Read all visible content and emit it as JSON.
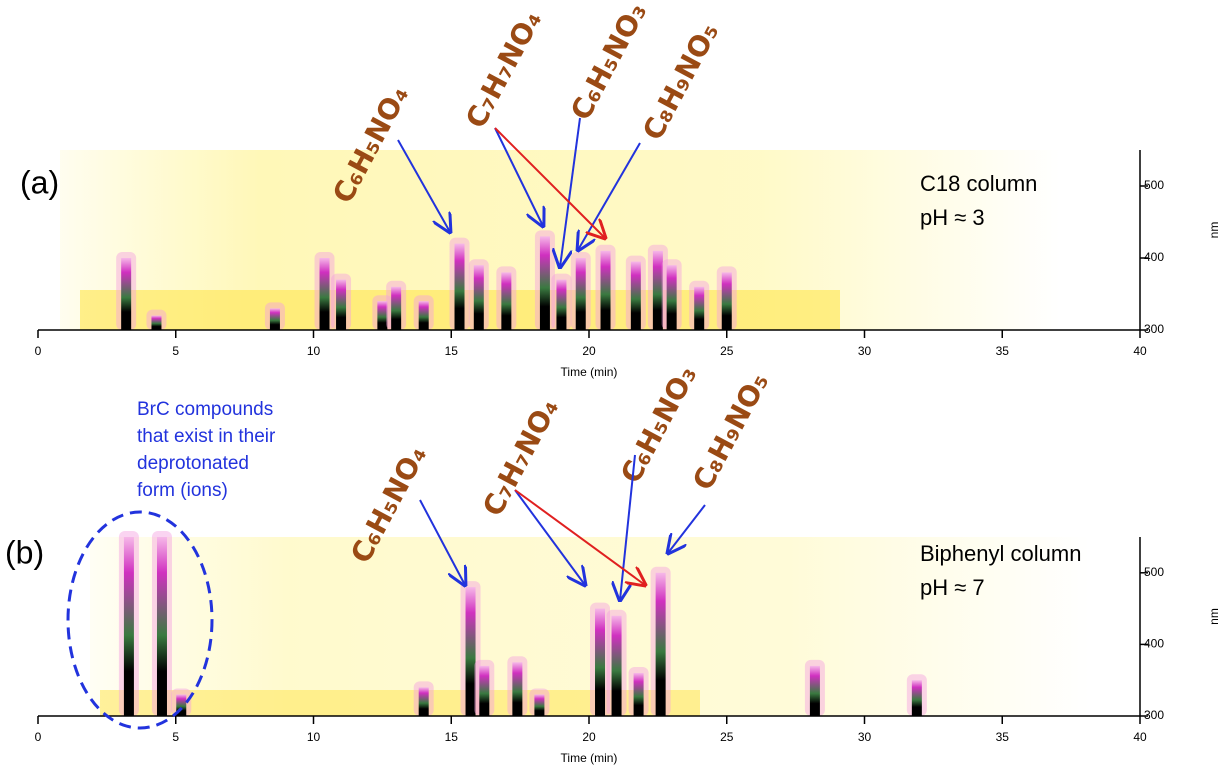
{
  "chart_data": [
    {
      "type": "heatmap",
      "panel_label": "(a)",
      "annotation": [
        "C18 column",
        "pH ≈ 3"
      ],
      "xlabel": "Time (min)",
      "ylabel": "nm",
      "xlim": [
        0,
        40
      ],
      "xticks": [
        0,
        5,
        10,
        15,
        20,
        25,
        30,
        35,
        40
      ],
      "ylim": [
        300,
        550
      ],
      "yticks": [
        300,
        400,
        500
      ],
      "formulas": [
        "C₆H₅NO₄",
        "C₇H₇NO₄",
        "C₆H₅NO₃",
        "C₈H₉NO₅"
      ],
      "peaks": {
        "x": [
          3.2,
          4.3,
          8.6,
          10.4,
          11,
          12.5,
          13,
          14,
          15.3,
          16,
          17,
          18.4,
          19,
          19.7,
          20.6,
          21.7,
          22.5,
          23,
          24,
          25
        ],
        "top": [
          400,
          320,
          330,
          400,
          370,
          340,
          360,
          340,
          420,
          390,
          380,
          430,
          370,
          400,
          410,
          395,
          410,
          390,
          360,
          380
        ]
      }
    },
    {
      "type": "heatmap",
      "panel_label": "(b)",
      "annotation": [
        "Biphenyl column",
        "pH ≈ 7"
      ],
      "xlabel": "Time (min)",
      "ylabel": "nm",
      "xlim": [
        0,
        40
      ],
      "xticks": [
        0,
        5,
        10,
        15,
        20,
        25,
        30,
        35,
        40
      ],
      "ylim": [
        300,
        550
      ],
      "yticks": [
        300,
        400,
        500
      ],
      "formulas": [
        "C₆H₅NO₄",
        "C₇H₇NO₄",
        "C₆H₅NO₃",
        "C₈H₉NO₅"
      ],
      "note": [
        "BrC compounds",
        "that exist in their",
        "deprotonated",
        "form (ions)"
      ],
      "peaks": {
        "x": [
          3.3,
          4.5,
          5.2,
          14,
          15.7,
          16.2,
          17.4,
          18.2,
          20.4,
          21,
          21.8,
          22.6,
          28.2,
          31.9
        ],
        "top": [
          550,
          550,
          330,
          340,
          480,
          370,
          375,
          330,
          450,
          440,
          360,
          500,
          370,
          350
        ]
      }
    }
  ]
}
